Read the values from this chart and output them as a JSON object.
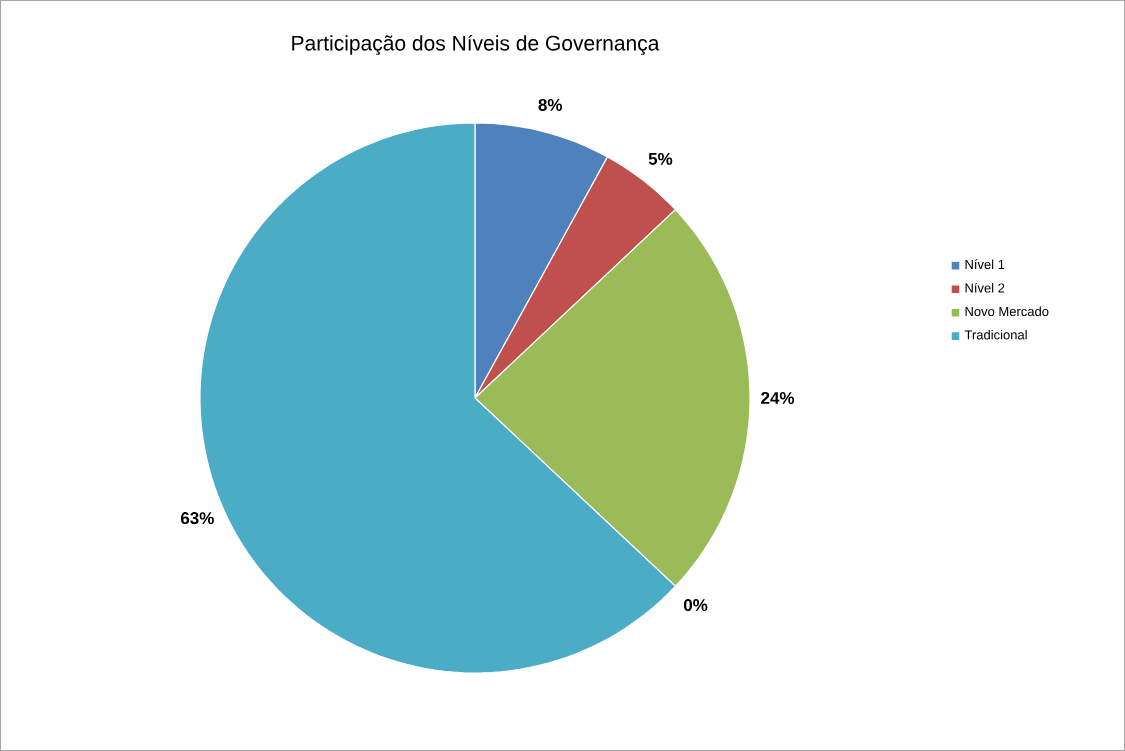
{
  "chart_data": {
    "type": "pie",
    "title": "Participação dos Níveis de Governança",
    "categories": [
      "Nível 1",
      "Nível 2",
      "Novo Mercado",
      null,
      "Tradicional"
    ],
    "values": [
      8,
      5,
      24,
      0,
      63
    ],
    "value_labels": [
      "8%",
      "5%",
      "24%",
      "0%",
      "63%"
    ],
    "colors": [
      "#4f81bd",
      "#c0504d",
      "#9bbb59",
      "#8064a2",
      "#4bacc6"
    ],
    "legend": "right"
  }
}
